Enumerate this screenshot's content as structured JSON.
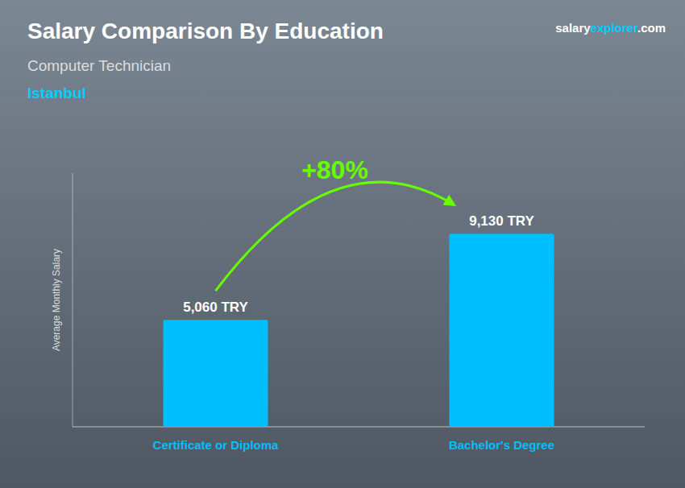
{
  "chart_data": {
    "type": "bar",
    "title": "Salary Comparison By Education",
    "subtitle": "Computer Technician",
    "annotations": [
      "Istanbul",
      "+80%",
      "salary",
      "explorer",
      ".com"
    ],
    "y_label": "Average Monthly Salary",
    "categories": [
      "Certificate or Diploma",
      "Bachelor's Degree"
    ],
    "values": [
      5060,
      9130
    ],
    "value_labels": [
      "5,060 TRY",
      "9,130 TRY"
    ],
    "data_labels": true,
    "color": "#00BFFF",
    "ylim": [
      0,
      12000
    ],
    "tick_labels": "x"
  }
}
